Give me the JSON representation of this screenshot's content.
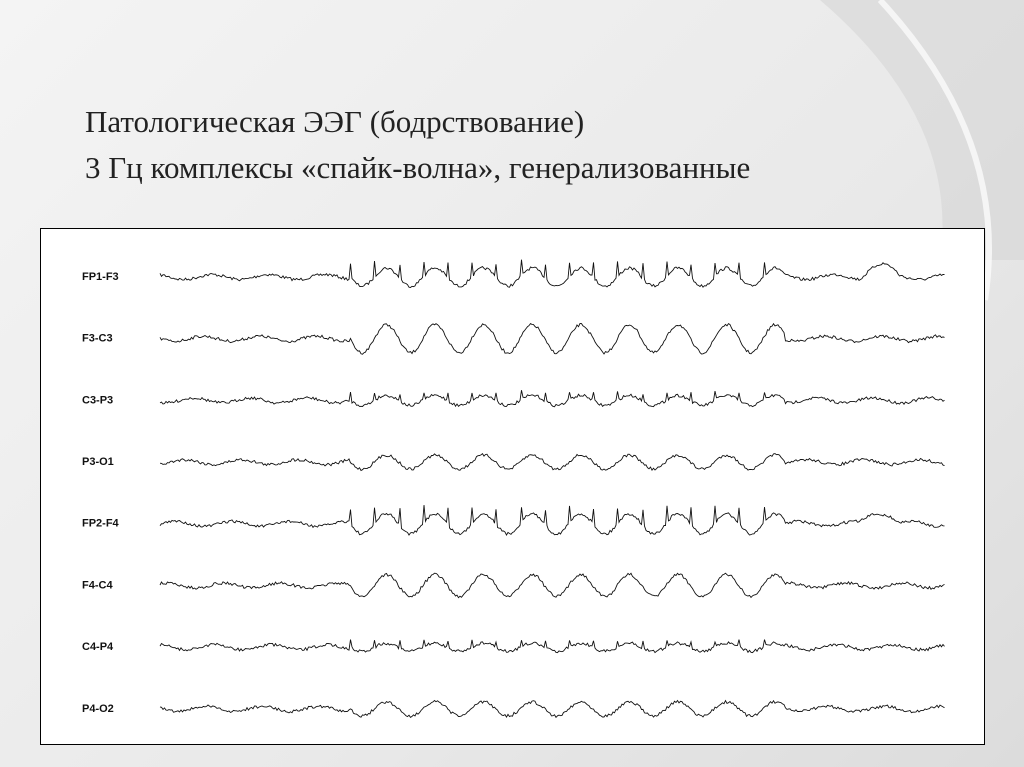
{
  "slide": {
    "title_lines": [
      "Патологическая ЭЭГ (бодрствование)",
      "3 Гц комплексы «спайк-волна», генерализованные"
    ],
    "channels": [
      "FP1-F3",
      "F3-C3",
      "C3-P3",
      "P3-O1",
      "FP2-F4",
      "F4-C4",
      "C4-P4",
      "P4-O2"
    ]
  }
}
